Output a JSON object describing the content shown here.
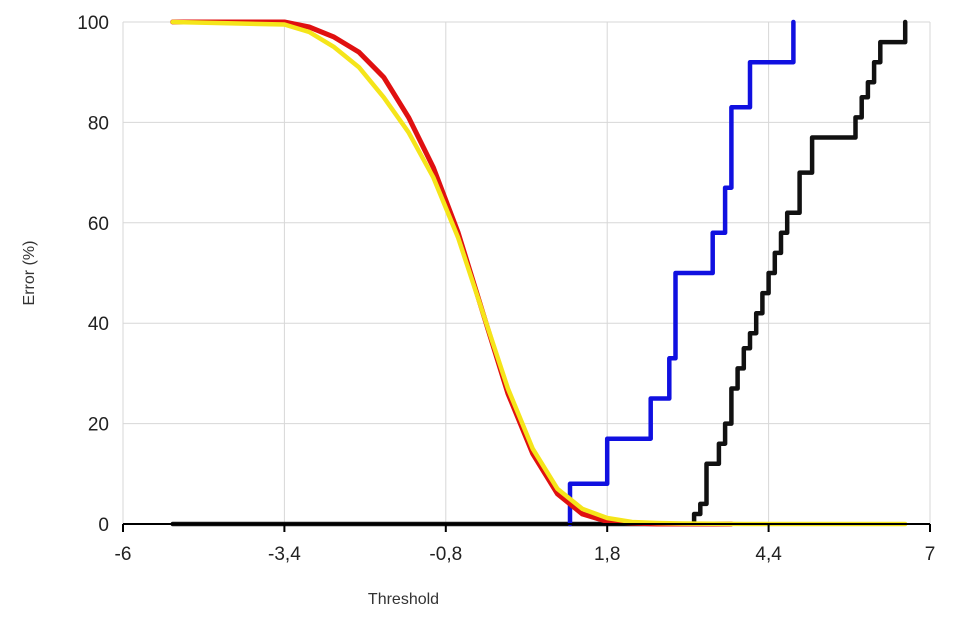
{
  "chart_data": {
    "type": "line",
    "title": "",
    "xlabel": "Threshold",
    "ylabel": "Error (%)",
    "xlim": [
      -6,
      7
    ],
    "ylim": [
      0,
      100
    ],
    "x_ticks": [
      -6,
      -3.4,
      -0.8,
      1.8,
      4.4,
      7
    ],
    "x_tick_labels": [
      "-6",
      "-3,4",
      "-0,8",
      "1,8",
      "4,4",
      "7"
    ],
    "y_ticks": [
      0,
      20,
      40,
      60,
      80,
      100
    ],
    "y_tick_labels": [
      "0",
      "20",
      "40",
      "60",
      "80",
      "100"
    ],
    "grid": true,
    "series": [
      {
        "color": "#111111",
        "style": "step",
        "x": [
          -5.2,
          3.2,
          3.2,
          3.3,
          3.3,
          3.4,
          3.4,
          3.6,
          3.6,
          3.7,
          3.7,
          3.8,
          3.8,
          3.9,
          3.9,
          4.0,
          4.0,
          4.1,
          4.1,
          4.2,
          4.2,
          4.3,
          4.3,
          4.4,
          4.4,
          4.5,
          4.5,
          4.6,
          4.6,
          4.7,
          4.7,
          4.8,
          4.8,
          4.9,
          4.9,
          5.1,
          5.1,
          5.3,
          5.3,
          5.4,
          5.4,
          5.5,
          5.5,
          5.8,
          5.8,
          5.9,
          5.9,
          6.0,
          6.0,
          6.1,
          6.1,
          6.2,
          6.2,
          6.3,
          6.3,
          6.6,
          6.6
        ],
        "y": [
          0,
          0,
          2,
          2,
          4,
          4,
          12,
          12,
          16,
          16,
          20,
          20,
          27,
          27,
          31,
          31,
          35,
          35,
          38,
          38,
          42,
          42,
          46,
          46,
          50,
          50,
          54,
          54,
          58,
          58,
          62,
          62,
          62,
          62,
          70,
          70,
          77,
          77,
          77,
          77,
          77,
          77,
          77,
          77,
          81,
          81,
          85,
          85,
          88,
          88,
          92,
          92,
          96,
          96,
          96,
          96,
          100
        ]
      },
      {
        "color": "#1010e0",
        "style": "step",
        "x": [
          1.2,
          1.2,
          1.8,
          1.8,
          2.5,
          2.5,
          2.8,
          2.8,
          2.9,
          2.9,
          3.5,
          3.5,
          3.7,
          3.7,
          3.8,
          3.8,
          3.9,
          3.9,
          4.1,
          4.1,
          4.8,
          4.8
        ],
        "y": [
          0,
          8,
          8,
          17,
          17,
          25,
          25,
          33,
          33,
          50,
          50,
          58,
          58,
          67,
          67,
          83,
          83,
          83,
          83,
          92,
          92,
          100
        ]
      },
      {
        "color": "#e01010",
        "style": "line",
        "x": [
          -5.2,
          -3.4,
          -3.0,
          -2.6,
          -2.2,
          -1.8,
          -1.4,
          -1.0,
          -0.6,
          -0.2,
          0.2,
          0.6,
          1.0,
          1.4,
          1.8,
          2.2,
          2.6,
          3.0,
          3.4,
          3.8
        ],
        "y": [
          100,
          100,
          99,
          97,
          94,
          89,
          81,
          71,
          58,
          42,
          26,
          14,
          6,
          2,
          0.5,
          0.2,
          0,
          0,
          0,
          0
        ]
      },
      {
        "color": "#f5e51a",
        "style": "line",
        "x": [
          -5.2,
          -3.4,
          -3.0,
          -2.6,
          -2.2,
          -1.8,
          -1.4,
          -1.0,
          -0.6,
          -0.2,
          0.2,
          0.6,
          1.0,
          1.4,
          1.8,
          2.2,
          2.6,
          3.0,
          4.0,
          5.0,
          6.6
        ],
        "y": [
          100,
          99.5,
          98,
          95,
          91,
          85,
          78,
          69,
          57,
          42,
          27,
          15,
          7,
          3,
          1.2,
          0.4,
          0.2,
          0.1,
          0,
          0,
          0
        ]
      }
    ]
  }
}
